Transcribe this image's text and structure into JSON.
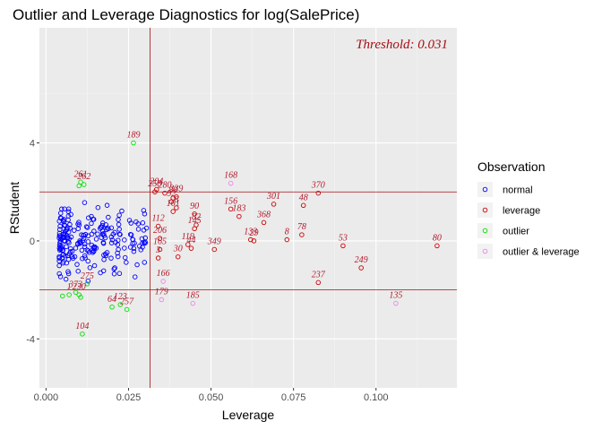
{
  "chart_data": {
    "type": "scatter",
    "title": "Outlier and Leverage Diagnostics for log(SalePrice)",
    "xlabel": "Leverage",
    "ylabel": "RStudent",
    "xlim": [
      -0.002,
      0.1245
    ],
    "ylim": [
      -6.0,
      8.7
    ],
    "xticks": [
      0.0,
      0.025,
      0.05,
      0.075,
      0.1
    ],
    "xtick_labels": [
      "0.000",
      "0.025",
      "0.050",
      "0.075",
      "0.100"
    ],
    "yticks": [
      -4,
      0,
      4
    ],
    "ytick_labels": [
      "-4",
      "0",
      "4"
    ],
    "grid": true,
    "threshold_text": "Threshold: 0.031",
    "hlines": [
      2,
      -2
    ],
    "vline": 0.0315,
    "reference_line_color": "#a50f15",
    "panel_background": "#ebebeb",
    "legend": {
      "title": "Observation",
      "placement": "right",
      "items": [
        {
          "key": "normal",
          "label": "normal",
          "color": "#0000ff"
        },
        {
          "key": "leverage",
          "label": "leverage",
          "color": "#cc0000"
        },
        {
          "key": "outlier",
          "label": "outlier",
          "color": "#00e000"
        },
        {
          "key": "both",
          "label": "outlier & leverage",
          "color": "#ee82ee"
        }
      ]
    },
    "series": [
      {
        "key": "leverage",
        "points": [
          {
            "x": 0.033,
            "y": 2.0,
            "label": "258"
          },
          {
            "x": 0.0335,
            "y": 2.1,
            "label": "204"
          },
          {
            "x": 0.036,
            "y": 1.95,
            "label": "280"
          },
          {
            "x": 0.0385,
            "y": 1.75,
            "label": "88"
          },
          {
            "x": 0.0395,
            "y": 1.8,
            "label": "339"
          },
          {
            "x": 0.038,
            "y": 1.6,
            "label": "92"
          },
          {
            "x": 0.0385,
            "y": 1.2,
            "label": "161"
          },
          {
            "x": 0.0395,
            "y": 1.35,
            "label": "8"
          },
          {
            "x": 0.034,
            "y": 0.6,
            "label": "112"
          },
          {
            "x": 0.0345,
            "y": 0.1,
            "label": "206"
          },
          {
            "x": 0.0345,
            "y": -0.35,
            "label": "165"
          },
          {
            "x": 0.034,
            "y": -0.7,
            "label": "3"
          },
          {
            "x": 0.04,
            "y": -0.65,
            "label": "30"
          },
          {
            "x": 0.043,
            "y": -0.15,
            "label": "119"
          },
          {
            "x": 0.045,
            "y": 0.5,
            "label": "145"
          },
          {
            "x": 0.0455,
            "y": 0.65,
            "label": "82"
          },
          {
            "x": 0.044,
            "y": -0.3,
            "label": "44"
          },
          {
            "x": 0.045,
            "y": 1.1,
            "label": "90"
          },
          {
            "x": 0.051,
            "y": -0.35,
            "label": "349"
          },
          {
            "x": 0.056,
            "y": 1.3,
            "label": "156"
          },
          {
            "x": 0.0585,
            "y": 1.0,
            "label": "183"
          },
          {
            "x": 0.062,
            "y": 0.05,
            "label": "133"
          },
          {
            "x": 0.063,
            "y": 0.0,
            "label": "29"
          },
          {
            "x": 0.066,
            "y": 0.75,
            "label": "368"
          },
          {
            "x": 0.069,
            "y": 1.5,
            "label": "301"
          },
          {
            "x": 0.073,
            "y": 0.05,
            "label": "8"
          },
          {
            "x": 0.0775,
            "y": 0.25,
            "label": "78"
          },
          {
            "x": 0.078,
            "y": 1.45,
            "label": "48"
          },
          {
            "x": 0.0825,
            "y": 1.95,
            "label": "370"
          },
          {
            "x": 0.09,
            "y": -0.2,
            "label": "53"
          },
          {
            "x": 0.0825,
            "y": -1.7,
            "label": "237"
          },
          {
            "x": 0.0955,
            "y": -1.1,
            "label": "249"
          },
          {
            "x": 0.1185,
            "y": -0.2,
            "label": "80"
          }
        ]
      },
      {
        "key": "outlier",
        "points": [
          {
            "x": 0.0265,
            "y": 4.0,
            "label": "189"
          },
          {
            "x": 0.0105,
            "y": 2.4,
            "label": "261"
          },
          {
            "x": 0.0115,
            "y": 2.3,
            "label": "262"
          },
          {
            "x": 0.01,
            "y": 2.25,
            "label": ""
          },
          {
            "x": 0.011,
            "y": -3.8,
            "label": "104"
          },
          {
            "x": 0.007,
            "y": -2.2,
            "label": "1"
          },
          {
            "x": 0.009,
            "y": -2.1,
            "label": "373"
          },
          {
            "x": 0.0105,
            "y": -2.3,
            "label": ""
          },
          {
            "x": 0.0125,
            "y": -1.75,
            "label": "275"
          },
          {
            "x": 0.02,
            "y": -2.7,
            "label": "64"
          },
          {
            "x": 0.0225,
            "y": -2.6,
            "label": "123"
          },
          {
            "x": 0.0245,
            "y": -2.8,
            "label": "257"
          },
          {
            "x": 0.005,
            "y": -2.25,
            "label": ""
          },
          {
            "x": 0.01,
            "y": -2.2,
            "label": "230"
          }
        ]
      },
      {
        "key": "both",
        "points": [
          {
            "x": 0.056,
            "y": 2.35,
            "label": "168"
          },
          {
            "x": 0.035,
            "y": -2.4,
            "label": "179"
          },
          {
            "x": 0.0355,
            "y": -1.65,
            "label": "166"
          },
          {
            "x": 0.0445,
            "y": -2.55,
            "label": "185"
          },
          {
            "x": 0.106,
            "y": -2.55,
            "label": "135"
          }
        ]
      }
    ],
    "normal_cloud": {
      "key": "normal",
      "count": 230,
      "x_range": [
        0.004,
        0.031
      ],
      "y_range": [
        -1.95,
        1.95
      ],
      "note_hidden": false
    }
  }
}
